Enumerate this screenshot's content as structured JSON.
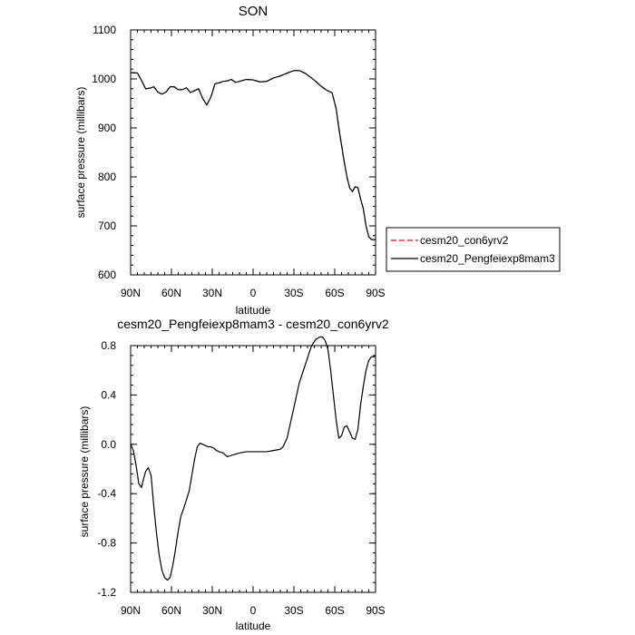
{
  "chart_data": [
    {
      "type": "line",
      "title": "SON",
      "xlabel": "latitude",
      "ylabel": "surface pressure (millibars)",
      "xlim": [
        90,
        -90
      ],
      "ylim": [
        600,
        1100
      ],
      "x_ticks": [
        90,
        60,
        30,
        0,
        -30,
        -60,
        -90
      ],
      "x_tick_labels": [
        "90N",
        "60N",
        "30N",
        "0",
        "30S",
        "60S",
        "90S"
      ],
      "y_ticks": [
        600,
        700,
        800,
        900,
        1000,
        1100
      ],
      "y_tick_labels": [
        "600",
        "700",
        "800",
        "900",
        "1000",
        "1100"
      ],
      "legend": {
        "position": "outside-right"
      },
      "series": [
        {
          "name": "cesm20_con6yrv2",
          "color": "#ff0000",
          "dash": "dashed",
          "x": [
            90,
            85,
            82,
            79,
            76,
            73,
            70,
            67,
            64,
            61,
            58,
            55,
            52,
            49,
            46,
            43,
            40,
            37,
            34,
            31,
            28,
            25,
            22,
            19,
            16,
            13,
            10,
            5,
            0,
            -5,
            -10,
            -15,
            -20,
            -25,
            -30,
            -34,
            -38,
            -42,
            -46,
            -50,
            -54,
            -58,
            -61,
            -63,
            -65,
            -67,
            -69,
            -71,
            -73,
            -75,
            -77,
            -79,
            -81,
            -83,
            -85,
            -87,
            -89,
            -90
          ],
          "y": [
            1013,
            1012,
            997,
            980,
            981,
            984,
            973,
            969,
            973,
            984,
            984,
            978,
            978,
            982,
            972,
            976,
            980,
            960,
            947,
            963,
            990,
            992,
            995,
            996,
            999,
            993,
            995,
            999,
            998,
            994,
            995,
            1002,
            1006,
            1012,
            1017,
            1017,
            1012,
            1004,
            995,
            985,
            977,
            972,
            940,
            900,
            865,
            830,
            800,
            777,
            770,
            780,
            778,
            755,
            735,
            700,
            678,
            672,
            672,
            672
          ]
        },
        {
          "name": "cesm20_Pengfeiexp8mam3",
          "color": "#000000",
          "dash": "solid",
          "x": [
            90,
            85,
            82,
            79,
            76,
            73,
            70,
            67,
            64,
            61,
            58,
            55,
            52,
            49,
            46,
            43,
            40,
            37,
            34,
            31,
            28,
            25,
            22,
            19,
            16,
            13,
            10,
            5,
            0,
            -5,
            -10,
            -15,
            -20,
            -25,
            -30,
            -34,
            -38,
            -42,
            -46,
            -50,
            -54,
            -58,
            -61,
            -63,
            -65,
            -67,
            -69,
            -71,
            -73,
            -75,
            -77,
            -79,
            -81,
            -83,
            -85,
            -87,
            -89,
            -90
          ],
          "y": [
            1013,
            1012,
            997,
            980,
            981,
            984,
            973,
            969,
            973,
            984,
            984,
            978,
            978,
            982,
            972,
            976,
            980,
            960,
            947,
            963,
            990,
            992,
            995,
            996,
            999,
            993,
            995,
            999,
            998,
            994,
            995,
            1002,
            1006,
            1012,
            1017,
            1017,
            1012,
            1004,
            995,
            985,
            977,
            972,
            940,
            900,
            865,
            830,
            800,
            777,
            770,
            780,
            778,
            755,
            735,
            700,
            678,
            672,
            672,
            672
          ]
        }
      ]
    },
    {
      "type": "line",
      "title": "cesm20_Pengfeiexp8mam3 - cesm20_con6yrv2",
      "xlabel": "latitude",
      "ylabel": "surface pressure (millibars)",
      "xlim": [
        90,
        -90
      ],
      "ylim": [
        -1.2,
        0.8
      ],
      "x_ticks": [
        90,
        60,
        30,
        0,
        -30,
        -60,
        -90
      ],
      "x_tick_labels": [
        "90N",
        "60N",
        "30N",
        "0",
        "30S",
        "60S",
        "90S"
      ],
      "y_ticks": [
        -1.2,
        -0.8,
        -0.4,
        0,
        0.4,
        0.8
      ],
      "y_tick_labels": [
        "-1.2",
        "-0.8",
        "-0.4",
        "0.0",
        "0.4",
        "0.8"
      ],
      "series": [
        {
          "color": "#000000",
          "dash": "solid",
          "x": [
            90,
            88,
            86,
            84,
            82,
            81,
            79,
            77,
            75,
            73,
            71,
            69,
            67,
            65,
            63,
            61,
            59,
            57,
            55,
            53,
            51,
            49,
            47,
            45,
            43,
            41,
            39,
            37,
            35,
            33,
            31,
            29,
            27,
            25,
            22,
            19,
            16,
            13,
            10,
            5,
            0,
            -5,
            -10,
            -15,
            -20,
            -22,
            -25,
            -28,
            -31,
            -34,
            -37,
            -40,
            -43,
            -46,
            -49,
            -51,
            -53,
            -55,
            -57,
            -59,
            -61,
            -63,
            -65,
            -67,
            -69,
            -71,
            -73,
            -75,
            -77,
            -79,
            -81,
            -83,
            -85,
            -87,
            -89,
            -90
          ],
          "y": [
            0,
            -0.05,
            -0.17,
            -0.32,
            -0.35,
            -0.3,
            -0.22,
            -0.19,
            -0.25,
            -0.5,
            -0.72,
            -0.9,
            -1.02,
            -1.08,
            -1.1,
            -1.08,
            -0.98,
            -0.85,
            -0.7,
            -0.58,
            -0.52,
            -0.45,
            -0.38,
            -0.25,
            -0.12,
            -0.02,
            0.01,
            0.0,
            -0.01,
            -0.02,
            -0.02,
            -0.03,
            -0.05,
            -0.06,
            -0.07,
            -0.1,
            -0.09,
            -0.08,
            -0.07,
            -0.06,
            -0.06,
            -0.06,
            -0.06,
            -0.05,
            -0.04,
            -0.02,
            0.05,
            0.2,
            0.35,
            0.5,
            0.6,
            0.7,
            0.8,
            0.85,
            0.87,
            0.87,
            0.84,
            0.77,
            0.6,
            0.4,
            0.2,
            0.05,
            0.07,
            0.14,
            0.15,
            0.1,
            0.05,
            0.04,
            0.12,
            0.32,
            0.47,
            0.6,
            0.68,
            0.71,
            0.71,
            0.72
          ]
        }
      ]
    }
  ]
}
